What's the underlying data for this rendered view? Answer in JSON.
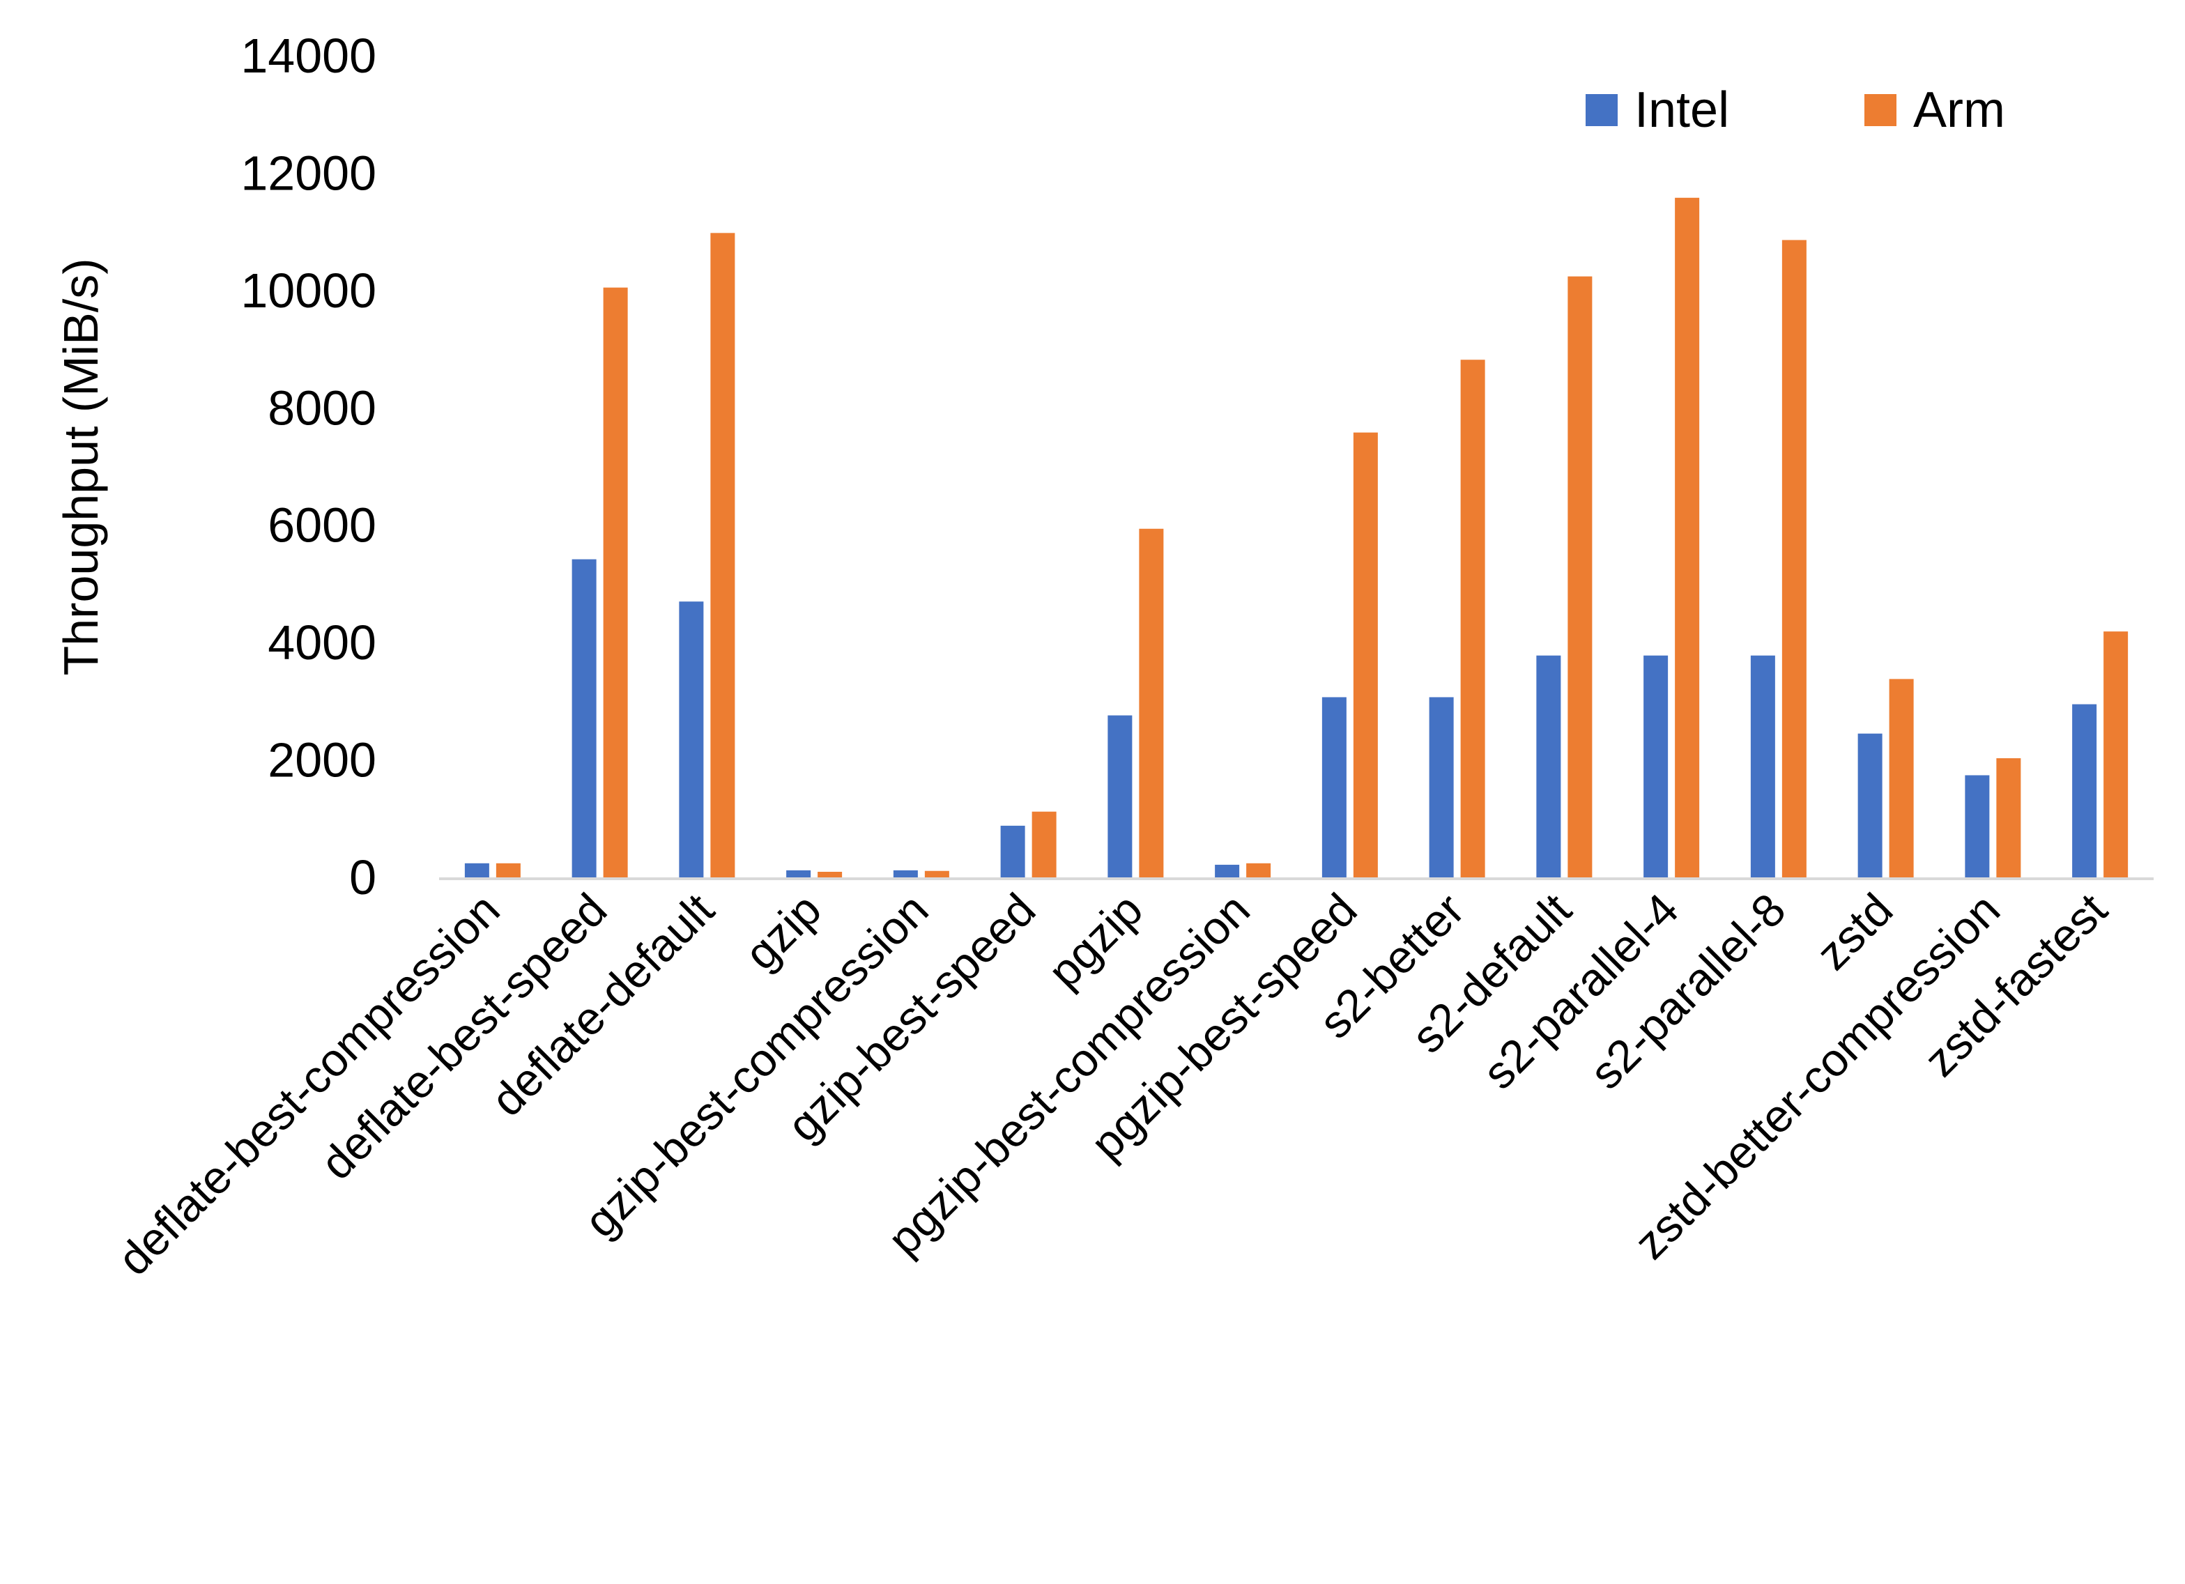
{
  "chart_data": {
    "type": "bar",
    "title": "",
    "xlabel": "",
    "ylabel": "Throughput (MiB/s)",
    "ylim": [
      0,
      14000
    ],
    "yticks": [
      "0",
      "2000",
      "4000",
      "6000",
      "8000",
      "10000",
      "12000",
      "14000"
    ],
    "grid": false,
    "legend": "top-right",
    "categories": [
      "deflate-best-compression",
      "deflate-best-speed",
      "deflate-default",
      "gzip",
      "gzip-best-compression",
      "gzip-best-speed",
      "pgzip",
      "pgzip-best-compression",
      "pgzip-best-speed",
      "s2-better",
      "s2-default",
      "s2-parallel-4",
      "s2-parallel-8",
      "zstd",
      "zstd-better-compression",
      "zstd-fastest"
    ],
    "series": [
      {
        "name": "Intel",
        "color": "#4472C4",
        "values": [
          240,
          5420,
          4700,
          120,
          120,
          880,
          2760,
          215,
          3070,
          3070,
          3780,
          3780,
          3780,
          2450,
          1740,
          2950
        ]
      },
      {
        "name": "Arm",
        "color": "#ED7D31",
        "values": [
          240,
          10050,
          10980,
          95,
          110,
          1120,
          5940,
          240,
          7580,
          8820,
          10240,
          11580,
          10860,
          3380,
          2030,
          4190
        ]
      }
    ]
  }
}
